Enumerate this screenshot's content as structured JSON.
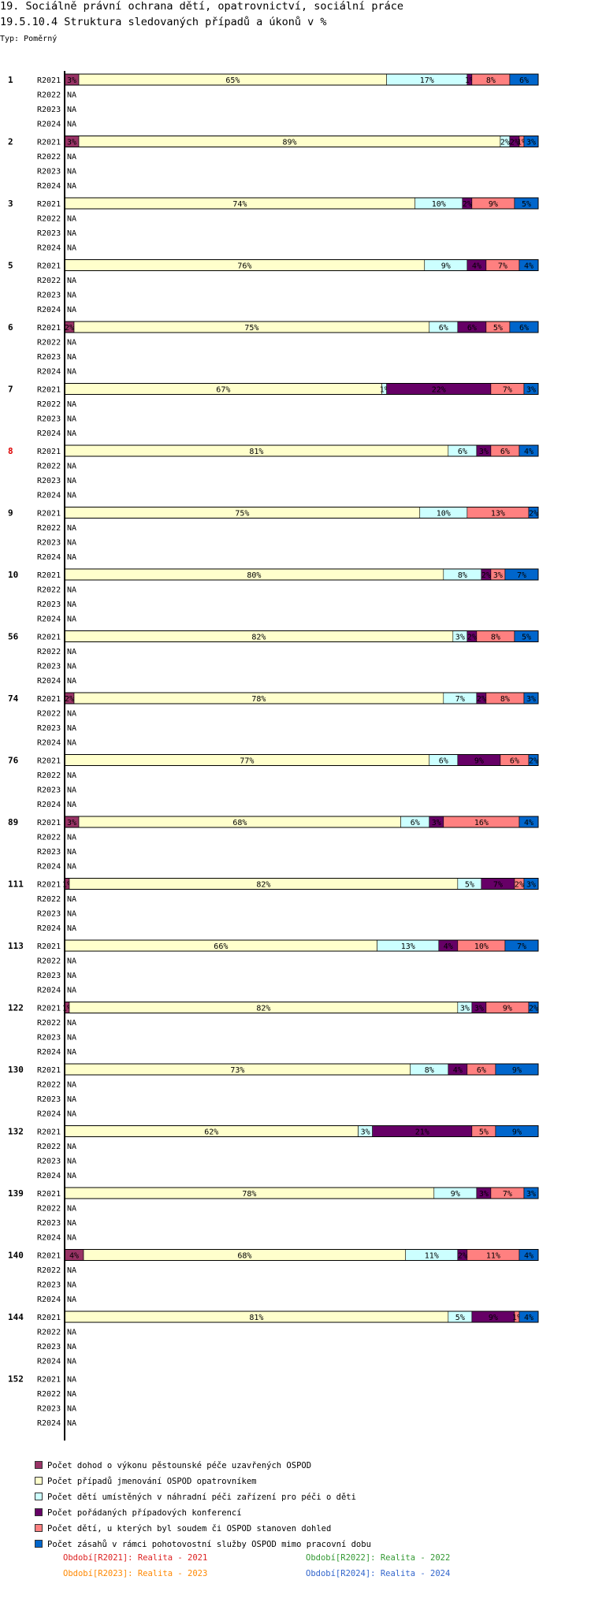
{
  "header": {
    "title1": "19. Sociálně právní ochrana dětí, opatrovnictví, sociální práce",
    "title2": "19.5.10.4 Struktura sledovaných případů a úkonů v %",
    "type_label": "Typ: Poměrný"
  },
  "colors": {
    "series": [
      "#993366",
      "#FFFFCC",
      "#CCFFFF",
      "#660066",
      "#FF8080",
      "#0066CC"
    ],
    "highlight_label": "#dd0000"
  },
  "chart_data": {
    "type": "bar",
    "orientation": "horizontal",
    "stacked": "percent",
    "periods": [
      "R2021",
      "R2022",
      "R2023",
      "R2024"
    ],
    "missing_label": "NA",
    "highlighted_group": "8",
    "series": [
      {
        "name": "Počet dohod o výkonu pěstounské péče uzavřených OSPOD",
        "color": "#993366"
      },
      {
        "name": "Počet případů jmenování OSPOD opatrovníkem",
        "color": "#FFFFCC"
      },
      {
        "name": "Počet dětí umístěných v náhradní péči zařízení pro péči o děti",
        "color": "#CCFFFF"
      },
      {
        "name": "Počet pořádaných případových konferencí",
        "color": "#660066"
      },
      {
        "name": "Počet dětí, u kterých byl soudem či OSPOD stanoven dohled",
        "color": "#FF8080"
      },
      {
        "name": "Počet zásahů v rámci pohotovostní služby OSPOD mimo pracovní dobu",
        "color": "#0066CC"
      }
    ],
    "groups": [
      {
        "label": "1",
        "values": [
          3,
          65,
          17,
          1,
          8,
          6
        ]
      },
      {
        "label": "2",
        "values": [
          3,
          89,
          2,
          2,
          1,
          3
        ]
      },
      {
        "label": "3",
        "values": [
          0,
          74,
          10,
          2,
          9,
          5
        ]
      },
      {
        "label": "5",
        "values": [
          0,
          76,
          9,
          4,
          7,
          4
        ]
      },
      {
        "label": "6",
        "values": [
          2,
          75,
          6,
          6,
          5,
          6
        ]
      },
      {
        "label": "7",
        "values": [
          0,
          67,
          1,
          22,
          7,
          3
        ]
      },
      {
        "label": "8",
        "values": [
          0,
          81,
          6,
          3,
          6,
          4
        ]
      },
      {
        "label": "9",
        "values": [
          0,
          75,
          10,
          0,
          13,
          2
        ]
      },
      {
        "label": "10",
        "values": [
          0,
          80,
          8,
          2,
          3,
          7
        ]
      },
      {
        "label": "56",
        "values": [
          0,
          82,
          3,
          2,
          8,
          5
        ]
      },
      {
        "label": "74",
        "values": [
          2,
          78,
          7,
          2,
          8,
          3
        ]
      },
      {
        "label": "76",
        "values": [
          0,
          77,
          6,
          9,
          6,
          2
        ]
      },
      {
        "label": "89",
        "values": [
          3,
          68,
          6,
          3,
          16,
          4
        ]
      },
      {
        "label": "111",
        "values": [
          1,
          82,
          5,
          7,
          2,
          3
        ]
      },
      {
        "label": "113",
        "values": [
          0,
          66,
          13,
          4,
          10,
          7
        ]
      },
      {
        "label": "122",
        "values": [
          1,
          82,
          3,
          3,
          9,
          2
        ]
      },
      {
        "label": "130",
        "values": [
          0,
          73,
          8,
          4,
          6,
          9
        ]
      },
      {
        "label": "132",
        "values": [
          0,
          62,
          3,
          21,
          5,
          9
        ]
      },
      {
        "label": "139",
        "values": [
          0,
          78,
          9,
          3,
          7,
          3
        ]
      },
      {
        "label": "140",
        "values": [
          4,
          68,
          11,
          2,
          11,
          4
        ]
      },
      {
        "label": "144",
        "values": [
          0,
          81,
          5,
          9,
          1,
          4
        ]
      },
      {
        "label": "152",
        "values": null
      }
    ]
  },
  "footer": {
    "items": [
      {
        "text": "Období[R2021]: Realita - 2021",
        "color": "#dd2222"
      },
      {
        "text": "Období[R2022]: Realita - 2022",
        "color": "#339933"
      },
      {
        "text": "Období[R2023]: Realita - 2023",
        "color": "#ff8800"
      },
      {
        "text": "Období[R2024]: Realita - 2024",
        "color": "#3366cc"
      }
    ]
  }
}
